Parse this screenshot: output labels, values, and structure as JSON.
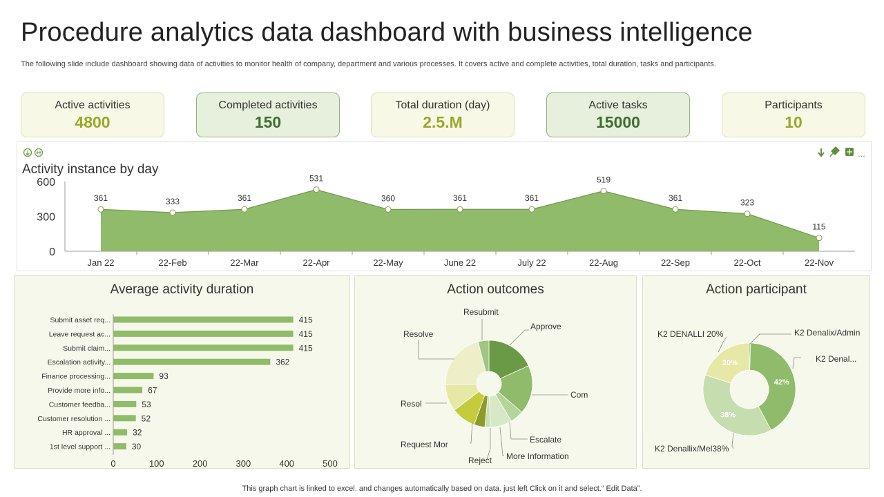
{
  "header": {
    "title": "Procedure analytics data dashboard with business intelligence",
    "subtitle": "The following slide include dashboard showing data of activities to monitor health of company, department and various processes. It covers active and complete activities, total duration, tasks and participants."
  },
  "kpis": [
    {
      "label": "Active activities",
      "value": "4800",
      "style": "light"
    },
    {
      "label": "Completed activities",
      "value": "150",
      "style": "dark"
    },
    {
      "label": "Total duration (day)",
      "value": "2.5.M",
      "style": "light"
    },
    {
      "label": "Active tasks",
      "value": "15000",
      "style": "dark"
    },
    {
      "label": "Participants",
      "value": "10",
      "style": "light"
    }
  ],
  "colors": {
    "area_fill": "#8fbb6a",
    "area_line": "#6f9a4c",
    "bar": "#8fbb6a",
    "donut_green": "#8fbb6a",
    "donut_light": "#c6ddb0",
    "donut_yellow": "#e6e8a6"
  },
  "toolbar_icons": [
    "download-icon",
    "pin-icon",
    "table-icon",
    "more-icon"
  ],
  "corner_icons": [
    "drill-down-icon",
    "expand-all-icon"
  ],
  "chart_data": [
    {
      "type": "area",
      "title": "Activity instance by day",
      "x": [
        "Jan 22",
        "22-Feb",
        "22-Mar",
        "22-Apr",
        "22-May",
        "June 22",
        "July 22",
        "22-Aug",
        "22-Sep",
        "22-Oct",
        "22-Nov"
      ],
      "values": [
        361,
        333,
        361,
        531,
        360,
        361,
        361,
        519,
        361,
        323,
        115
      ],
      "ylim": [
        0,
        600
      ],
      "yticks": [
        "0",
        "300",
        "600"
      ],
      "grid": false,
      "data_labels": true
    },
    {
      "type": "bar",
      "orientation": "horizontal",
      "title": "Average activity duration",
      "categories": [
        "Submit asset req...",
        "Leave request ac...",
        "Submit claim...",
        "Escalation activity...",
        "Finance processing...",
        "Provide more info...",
        "Customer feedba...",
        "Customer resolution ...",
        "HR approval ...",
        "1st level support ..."
      ],
      "values": [
        415,
        415,
        415,
        362,
        93,
        67,
        53,
        52,
        32,
        30
      ],
      "xlim": [
        0,
        500
      ],
      "xticks": [
        "0",
        "100",
        "200",
        "300",
        "400",
        "500"
      ],
      "data_labels": true
    },
    {
      "type": "pie",
      "variant": "donut",
      "title": "Action outcomes",
      "slices": [
        {
          "label": "Approve",
          "value": 18,
          "color": "#6a9a45"
        },
        {
          "label": "Com",
          "value": 18,
          "color": "#8fbb6a"
        },
        {
          "label": "Escalate",
          "value": 5,
          "color": "#b5d49a"
        },
        {
          "label": "More Information",
          "value": 8,
          "color": "#d7e8c6"
        },
        {
          "label": "Reject",
          "value": 2,
          "color": "#c8e0b3"
        },
        {
          "label": "",
          "value": 4,
          "color": "#8e9a2a"
        },
        {
          "label": "Request Mor",
          "value": 9,
          "color": "#c5cc3c"
        },
        {
          "label": "Resol",
          "value": 10,
          "color": "#e6e8a6"
        },
        {
          "label": "Resolve",
          "value": 21,
          "color": "#eeefc9"
        },
        {
          "label": "Resubmit",
          "value": 4,
          "color": "#9fc682"
        }
      ]
    },
    {
      "type": "pie",
      "variant": "donut",
      "title": "Action participant",
      "slices": [
        {
          "label": "K2 Denalix/Admin",
          "value": 0.4,
          "color": "#6a9a45",
          "pct_label": ""
        },
        {
          "label": "K2 Denal...",
          "value": 42,
          "color": "#8fbb6a",
          "pct_label": "42%"
        },
        {
          "label": "K2 Denallix/Mel38%",
          "value": 38,
          "color": "#c6ddb0",
          "pct_label": "38%"
        },
        {
          "label": "K2 DENALLI 20%",
          "value": 20,
          "color": "#e6e8a6",
          "pct_label": "20%"
        }
      ]
    }
  ],
  "footer": "This graph chart is linked to excel.  and changes automatically based on data. just left Click on it and select.“ Edit Data”."
}
